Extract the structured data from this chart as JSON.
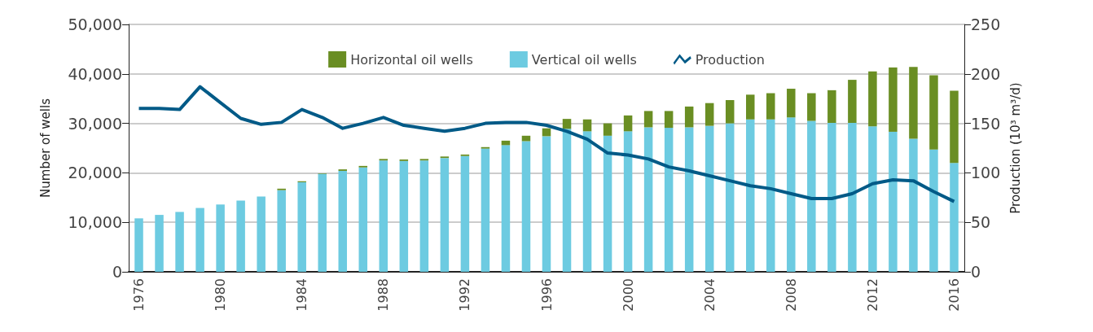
{
  "chart_data": {
    "type": "bar",
    "stacked": true,
    "categories": [
      "1976",
      null,
      null,
      null,
      "1980",
      null,
      null,
      null,
      "1984",
      null,
      null,
      null,
      "1988",
      null,
      null,
      null,
      "1992",
      null,
      null,
      null,
      "1996",
      null,
      null,
      null,
      "2000",
      null,
      null,
      null,
      "2004",
      null,
      null,
      null,
      "2008",
      null,
      null,
      null,
      "2012",
      null,
      null,
      null,
      "2016"
    ],
    "series": [
      {
        "name": "Vertical oil wells",
        "color": "#6dcbe1",
        "values": [
          10800,
          11500,
          12100,
          12900,
          13600,
          14400,
          15200,
          16500,
          18100,
          19800,
          20400,
          21100,
          22500,
          22400,
          22500,
          23000,
          23400,
          24900,
          25600,
          26400,
          27400,
          28900,
          28400,
          27500,
          28400,
          29200,
          29100,
          29200,
          29500,
          30000,
          30800,
          30800,
          31200,
          30500,
          30100,
          30100,
          29400,
          28300,
          26900,
          24700,
          22000
        ]
      },
      {
        "name": "Horizontal oil wells",
        "color": "#6a8e23",
        "values": [
          0,
          0,
          0,
          0,
          0,
          0,
          0,
          300,
          200,
          100,
          300,
          300,
          300,
          300,
          300,
          300,
          300,
          300,
          900,
          1100,
          1600,
          2000,
          2400,
          2500,
          3200,
          3300,
          3400,
          4200,
          4600,
          4700,
          5000,
          5300,
          5800,
          5600,
          6600,
          8700,
          11100,
          13000,
          14500,
          15000,
          14600
        ]
      },
      {
        "name": "Production",
        "type": "line",
        "axis": "y2",
        "color": "#005a87",
        "values": [
          165,
          165,
          164,
          187,
          171,
          155,
          149,
          151,
          164,
          156,
          145,
          150,
          156,
          148,
          145,
          142,
          145,
          150,
          151,
          151,
          148,
          142,
          134,
          120,
          118,
          114,
          106,
          102,
          97,
          92,
          87,
          84,
          79,
          74,
          74,
          79,
          89,
          93,
          92,
          81,
          71
        ]
      }
    ],
    "ylabel": "Number of wells",
    "y2label": "Production (10³ m³/d)",
    "ylim": [
      0,
      50000
    ],
    "yticks": [
      0,
      {
        "value": 10000,
        "label": "10,000"
      },
      {
        "value": 20000,
        "label": "20,000"
      },
      {
        "value": 30000,
        "label": "30,000"
      },
      {
        "value": 40000,
        "label": "40,000"
      },
      {
        "value": 50000,
        "label": "50,000"
      }
    ],
    "y2lim": [
      0,
      250
    ],
    "y2ticks": [
      0,
      50,
      100,
      150,
      200,
      250
    ],
    "grid": "y",
    "legend": "top"
  }
}
